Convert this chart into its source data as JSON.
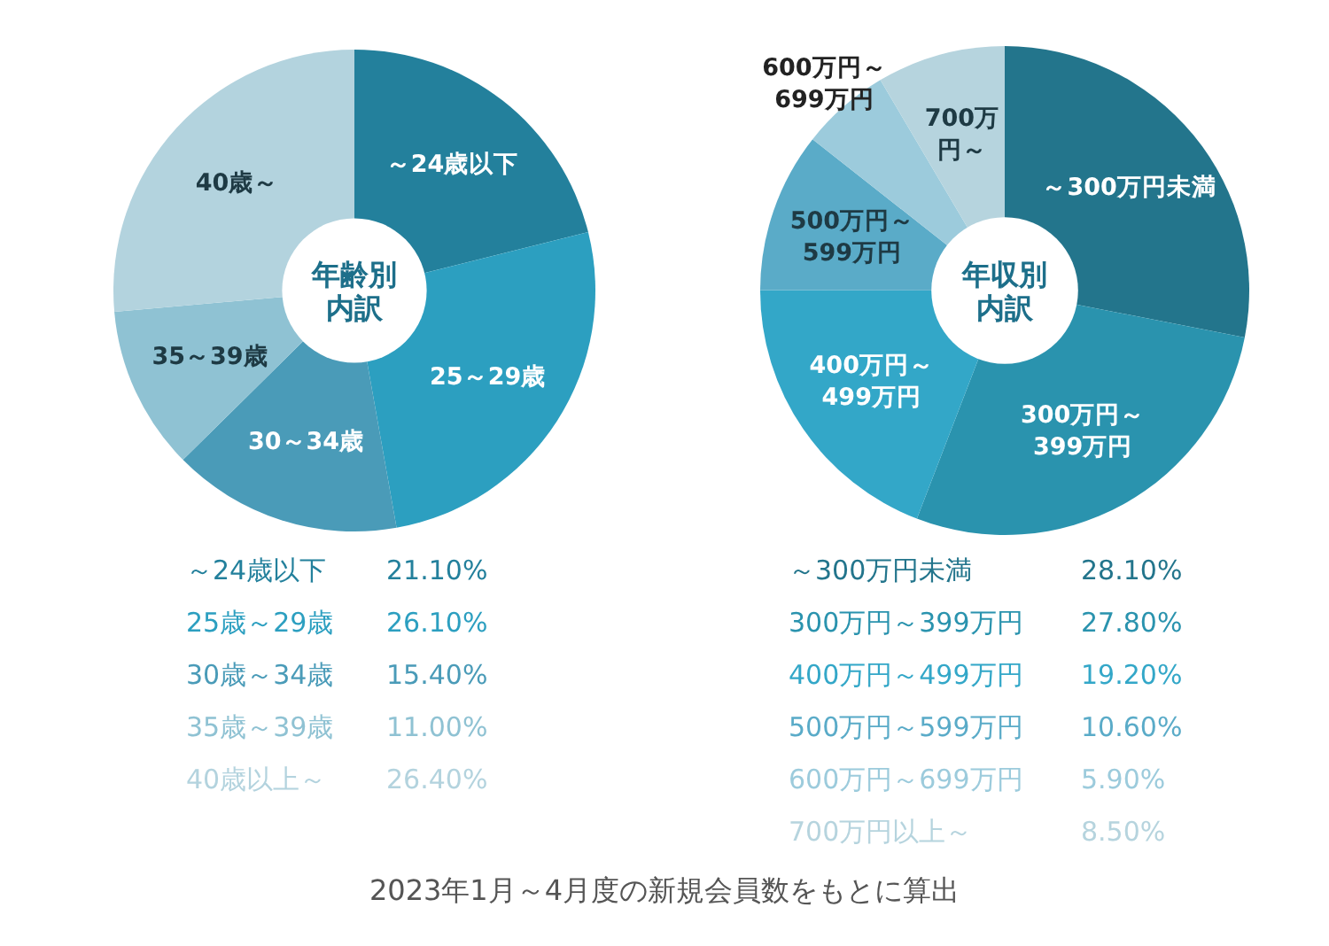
{
  "chart_data": [
    {
      "type": "donut",
      "title": "年齢別内訳",
      "categories": [
        "～24歳以下",
        "25～29歳",
        "30～34歳",
        "35～39歳",
        "40歳～"
      ],
      "values": [
        21.1,
        26.1,
        15.4,
        11.0,
        26.4
      ],
      "colors": [
        "#23809c",
        "#2c9fc0",
        "#4a9bb8",
        "#8fc2d3",
        "#b3d3de"
      ],
      "annotations": [
        "～24歳以下",
        "21.10%",
        "25歳～29歳",
        "26.10%",
        "30歳～34歳",
        "15.40%",
        "35歳～39歳",
        "11.00%",
        "40歳以上～",
        "26.40%"
      ]
    },
    {
      "type": "donut",
      "title": "年収別内訳",
      "categories": [
        "～300万円未満",
        "300万円～399万円",
        "400万円～499万円",
        "500万円～599万円",
        "600万円～699万円",
        "700万円～"
      ],
      "values": [
        28.1,
        27.8,
        19.2,
        10.6,
        5.9,
        8.5
      ],
      "colors": [
        "#23758c",
        "#2a93ae",
        "#33a7c8",
        "#5aabc8",
        "#9ccbdc",
        "#b6d4de"
      ],
      "annotations": [
        "～300万円未満",
        "28.10%",
        "300万円～399万円",
        "27.80%",
        "400万円～499万円",
        "19.20%",
        "500万円～599万円",
        "10.60%",
        "600万円～699万円",
        "5.90%",
        "700万円以上～",
        "8.50%",
        "2023年1月～4月度の新規会員数をもとに算出"
      ]
    }
  ]
}
